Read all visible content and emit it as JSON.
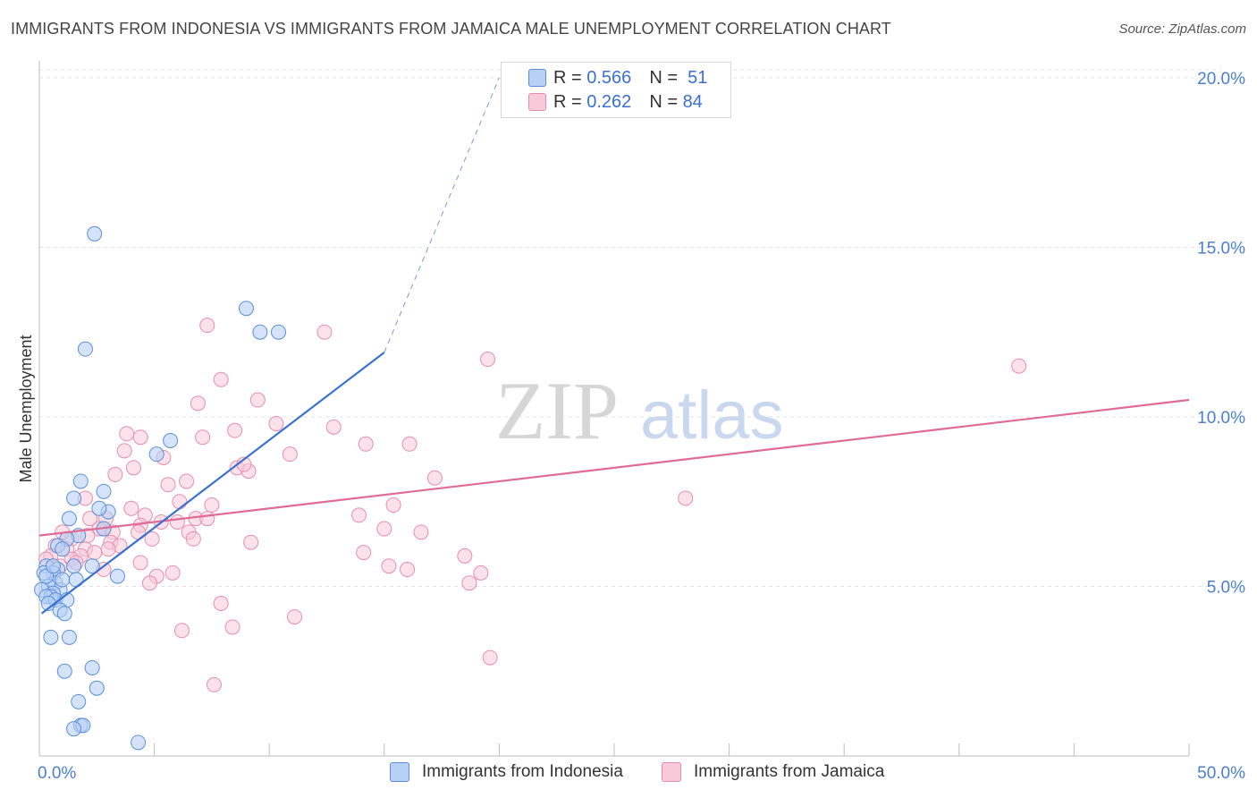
{
  "title": "IMMIGRANTS FROM INDONESIA VS IMMIGRANTS FROM JAMAICA MALE UNEMPLOYMENT CORRELATION CHART",
  "source": "Source: ZipAtlas.com",
  "watermark": {
    "part1": "ZIP",
    "part2": "atlas"
  },
  "legend": {
    "rows": [
      {
        "r_label": "R =",
        "r_value": "0.566",
        "n_label": "N =",
        "n_value": "51"
      },
      {
        "r_label": "R =",
        "r_value": "0.262",
        "n_label": "N =",
        "n_value": "84"
      }
    ]
  },
  "bottom_legend": {
    "indonesia": "Immigrants from Indonesia",
    "jamaica": "Immigrants from Jamaica"
  },
  "colors": {
    "indonesia_fill": "#b8d0f5",
    "indonesia_stroke": "#5b8fd9",
    "indonesia_line": "#3a72d0",
    "jamaica_fill": "#f8c9d8",
    "jamaica_stroke": "#e68fab",
    "jamaica_line": "#e06c96"
  },
  "chart_data": {
    "type": "scatter",
    "title": "IMMIGRANTS FROM INDONESIA VS IMMIGRANTS FROM JAMAICA MALE UNEMPLOYMENT CORRELATION CHART",
    "xlabel": "",
    "ylabel": "Male Unemployment",
    "xlim": [
      0,
      50
    ],
    "ylim": [
      0,
      20.5
    ],
    "x_tick_labels": [
      {
        "value": 0,
        "label": "0.0%"
      },
      {
        "value": 50,
        "label": "50.0%"
      }
    ],
    "y_tick_labels": [
      {
        "value": 5,
        "label": "5.0%"
      },
      {
        "value": 10,
        "label": "10.0%"
      },
      {
        "value": 15,
        "label": "15.0%"
      },
      {
        "value": 20,
        "label": "20.0%"
      }
    ],
    "series": [
      {
        "name": "Immigrants from Indonesia",
        "R": 0.566,
        "N": 51,
        "trend": {
          "x0": 0.1,
          "y0": 4.2,
          "x1": 15,
          "y1": 11.9,
          "dash_to_x": 20,
          "dash_to_y": 20.0
        },
        "points": [
          [
            2.4,
            15.4
          ],
          [
            2.0,
            12.0
          ],
          [
            9.0,
            13.2
          ],
          [
            9.6,
            12.5
          ],
          [
            10.4,
            12.5
          ],
          [
            5.7,
            9.3
          ],
          [
            5.1,
            8.9
          ],
          [
            1.8,
            8.1
          ],
          [
            1.5,
            7.6
          ],
          [
            2.8,
            7.8
          ],
          [
            1.3,
            7.0
          ],
          [
            3.0,
            7.2
          ],
          [
            2.6,
            7.3
          ],
          [
            1.7,
            6.5
          ],
          [
            1.2,
            6.4
          ],
          [
            2.8,
            6.7
          ],
          [
            0.8,
            6.2
          ],
          [
            1.0,
            6.1
          ],
          [
            1.5,
            5.6
          ],
          [
            2.3,
            5.6
          ],
          [
            0.3,
            5.6
          ],
          [
            0.8,
            5.5
          ],
          [
            0.6,
            5.4
          ],
          [
            0.2,
            5.4
          ],
          [
            0.7,
            5.1
          ],
          [
            0.4,
            5.0
          ],
          [
            0.1,
            4.9
          ],
          [
            3.4,
            5.3
          ],
          [
            1.6,
            5.2
          ],
          [
            0.9,
            4.9
          ],
          [
            0.6,
            4.8
          ],
          [
            0.5,
            4.7
          ],
          [
            0.3,
            4.7
          ],
          [
            0.7,
            4.6
          ],
          [
            1.2,
            4.6
          ],
          [
            0.4,
            4.5
          ],
          [
            0.9,
            4.3
          ],
          [
            1.1,
            4.2
          ],
          [
            0.5,
            3.5
          ],
          [
            1.3,
            3.5
          ],
          [
            1.1,
            2.5
          ],
          [
            2.3,
            2.6
          ],
          [
            2.5,
            2.0
          ],
          [
            1.7,
            1.6
          ],
          [
            1.8,
            0.9
          ],
          [
            1.9,
            0.9
          ],
          [
            1.5,
            0.8
          ],
          [
            4.3,
            0.4
          ],
          [
            0.3,
            5.3
          ],
          [
            0.6,
            5.6
          ],
          [
            1.0,
            5.2
          ]
        ]
      },
      {
        "name": "Immigrants from Jamaica",
        "R": 0.262,
        "N": 84,
        "trend": {
          "x0": 0,
          "y0": 6.5,
          "x1": 50,
          "y1": 10.5
        },
        "points": [
          [
            7.3,
            12.7
          ],
          [
            12.4,
            12.5
          ],
          [
            19.5,
            11.7
          ],
          [
            42.6,
            11.5
          ],
          [
            7.9,
            11.1
          ],
          [
            9.5,
            10.5
          ],
          [
            6.9,
            10.4
          ],
          [
            10.3,
            9.8
          ],
          [
            12.8,
            9.7
          ],
          [
            8.5,
            9.6
          ],
          [
            3.8,
            9.5
          ],
          [
            4.4,
            9.4
          ],
          [
            7.1,
            9.4
          ],
          [
            14.2,
            9.2
          ],
          [
            16.1,
            9.2
          ],
          [
            3.7,
            9.0
          ],
          [
            10.9,
            8.9
          ],
          [
            5.4,
            8.8
          ],
          [
            4.1,
            8.5
          ],
          [
            8.6,
            8.5
          ],
          [
            9.1,
            8.4
          ],
          [
            3.3,
            8.3
          ],
          [
            17.2,
            8.2
          ],
          [
            6.4,
            8.1
          ],
          [
            5.6,
            8.0
          ],
          [
            28.1,
            7.6
          ],
          [
            2.0,
            7.6
          ],
          [
            6.1,
            7.5
          ],
          [
            7.5,
            7.4
          ],
          [
            15.4,
            7.4
          ],
          [
            4.0,
            7.3
          ],
          [
            4.6,
            7.1
          ],
          [
            13.9,
            7.1
          ],
          [
            6.8,
            7.0
          ],
          [
            7.3,
            7.0
          ],
          [
            2.9,
            7.0
          ],
          [
            6.0,
            6.9
          ],
          [
            4.4,
            6.8
          ],
          [
            2.8,
            6.7
          ],
          [
            15.0,
            6.7
          ],
          [
            2.6,
            6.7
          ],
          [
            6.5,
            6.6
          ],
          [
            16.6,
            6.6
          ],
          [
            3.2,
            6.6
          ],
          [
            4.3,
            6.6
          ],
          [
            2.1,
            6.5
          ],
          [
            6.7,
            6.4
          ],
          [
            4.9,
            6.4
          ],
          [
            1.4,
            6.4
          ],
          [
            3.1,
            6.3
          ],
          [
            9.2,
            6.3
          ],
          [
            0.7,
            6.2
          ],
          [
            3.5,
            6.2
          ],
          [
            1.2,
            6.1
          ],
          [
            2.0,
            6.1
          ],
          [
            1.8,
            5.9
          ],
          [
            0.5,
            5.9
          ],
          [
            14.1,
            6.0
          ],
          [
            18.5,
            5.9
          ],
          [
            1.4,
            5.8
          ],
          [
            4.4,
            5.7
          ],
          [
            0.9,
            5.6
          ],
          [
            15.2,
            5.6
          ],
          [
            2.8,
            5.5
          ],
          [
            16.0,
            5.5
          ],
          [
            5.8,
            5.4
          ],
          [
            19.2,
            5.4
          ],
          [
            5.1,
            5.3
          ],
          [
            4.8,
            5.1
          ],
          [
            18.7,
            5.1
          ],
          [
            7.9,
            4.5
          ],
          [
            11.1,
            4.1
          ],
          [
            6.2,
            3.7
          ],
          [
            8.4,
            3.8
          ],
          [
            19.6,
            2.9
          ],
          [
            7.6,
            2.1
          ],
          [
            1.6,
            5.7
          ],
          [
            2.4,
            6.0
          ],
          [
            0.3,
            5.8
          ],
          [
            3.0,
            6.1
          ],
          [
            1.0,
            6.6
          ],
          [
            5.3,
            6.9
          ],
          [
            8.9,
            8.6
          ],
          [
            2.2,
            7.0
          ]
        ]
      }
    ]
  }
}
